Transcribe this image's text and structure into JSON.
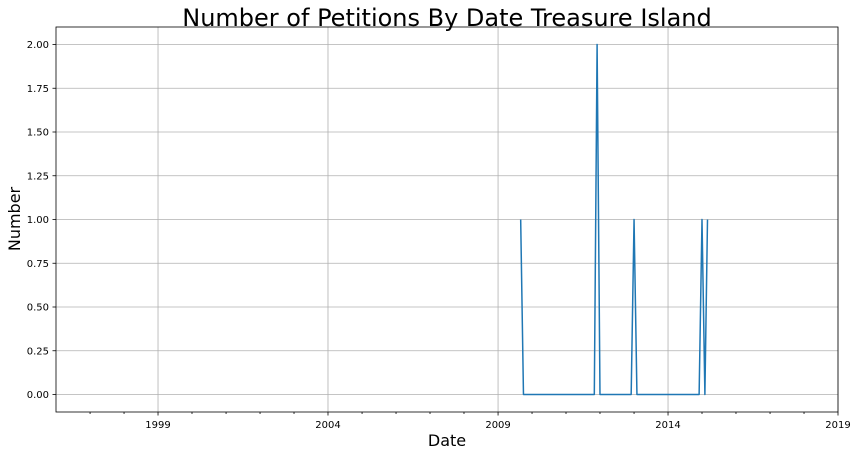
{
  "chart_data": {
    "type": "line",
    "title": "Number of Petitions By Date Treasure Island",
    "xlabel": "Date",
    "ylabel": "Number",
    "x_axis_type": "date",
    "xlim": [
      "1996-01-01",
      "2019-01-01"
    ],
    "ylim": [
      -0.1,
      2.1
    ],
    "x_ticks": [
      "1999-01-01",
      "2004-01-01",
      "2009-01-01",
      "2014-01-01",
      "2019-01-01"
    ],
    "x_tick_labels": [
      "1999",
      "2004",
      "2009",
      "2014",
      "2019"
    ],
    "x_minor_ticks": [
      "1997-01-01",
      "1998-01-01",
      "2000-01-01",
      "2001-01-01",
      "2002-01-01",
      "2003-01-01",
      "2005-01-01",
      "2006-01-01",
      "2007-01-01",
      "2008-01-01",
      "2010-01-01",
      "2011-01-01",
      "2012-01-01",
      "2013-01-01",
      "2015-01-01",
      "2016-01-01",
      "2017-01-01",
      "2018-01-01"
    ],
    "y_ticks": [
      0.0,
      0.25,
      0.5,
      0.75,
      1.0,
      1.25,
      1.5,
      1.75,
      2.0
    ],
    "y_tick_labels": [
      "0.00",
      "0.25",
      "0.50",
      "0.75",
      "1.00",
      "1.25",
      "1.50",
      "1.75",
      "2.00"
    ],
    "grid": true,
    "series": [
      {
        "color": "#1f77b4",
        "x": [
          "2009-09-01",
          "2009-10-01",
          "2011-11-01",
          "2011-12-01",
          "2012-01-01",
          "2012-12-01",
          "2013-01-01",
          "2013-02-01",
          "2014-12-01",
          "2015-01-01",
          "2015-02-01",
          "2015-03-01"
        ],
        "y": [
          1,
          0,
          0,
          2,
          0,
          0,
          1,
          0,
          0,
          1,
          0,
          1
        ]
      }
    ]
  }
}
